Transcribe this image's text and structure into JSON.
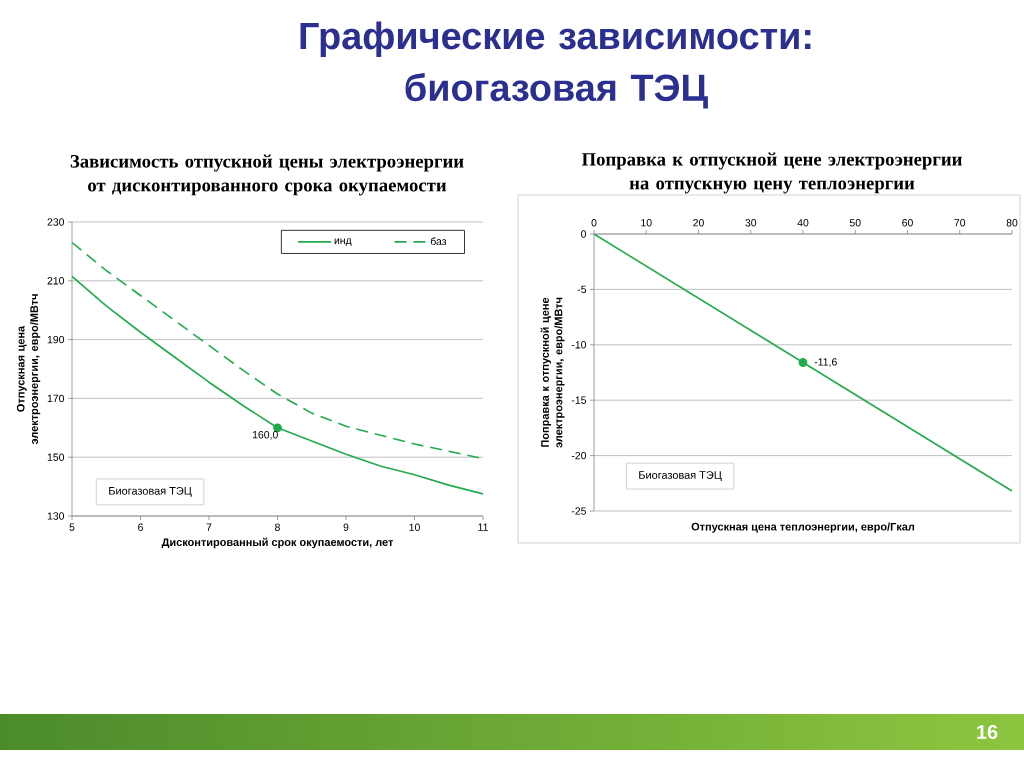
{
  "chart_data": [
    {
      "type": "other",
      "title": "Графические зависимости: биогазовая ТЭЦ",
      "annotations": [
        "16"
      ]
    },
    {
      "type": "line",
      "title": "Зависимость отпускной цены электроэнергии от дисконтированного срока окупаемости",
      "xlabel": "Дисконтированный срок окупаемости, лет",
      "ylabel": "Отпускная цена электроэнергии, евро/МВтч",
      "x": [
        5,
        5.5,
        6,
        6.5,
        7,
        7.5,
        8,
        8.5,
        9,
        9.5,
        10,
        10.5,
        11
      ],
      "series": [
        {
          "name": "инд",
          "color": "#22ab4c",
          "line_style": "solid",
          "values": [
            211.5,
            201.5,
            192.5,
            184,
            175.5,
            167.5,
            160,
            155.5,
            151,
            147,
            144,
            140.5,
            137.5
          ]
        },
        {
          "name": "баз",
          "color": "#22ab4c",
          "line_style": "dashed",
          "values": [
            223,
            213.5,
            205,
            196.5,
            188,
            179.5,
            171.5,
            165,
            160.5,
            157.5,
            154.5,
            152,
            149.5
          ]
        },
        {
          "type": "scatter",
          "color": "#22ab4c",
          "marker": "circle",
          "x": [
            8
          ],
          "values": [
            160.0
          ],
          "value_labels": [
            "160,0"
          ]
        }
      ],
      "xlim": [
        5,
        11
      ],
      "xticks": [
        5,
        6,
        7,
        8,
        9,
        10,
        11
      ],
      "ylim": [
        130,
        230
      ],
      "yticks": [
        130,
        150,
        170,
        190,
        210,
        230
      ],
      "grid": "y",
      "legend": "top right",
      "annotations": [
        "Биогазовая ТЭЦ"
      ]
    },
    {
      "type": "line",
      "title": "Поправка к отпускной цене электроэнергии на отпускную цену теплоэнергии",
      "xlabel": "Отпускная цена теплоэнергии, евро/Гкал",
      "ylabel": "Поправка к отпускной цене электроэнергии, евро/МВтч",
      "series": [
        {
          "color": "#22ab4c",
          "line_style": "solid",
          "x": [
            0,
            80
          ],
          "values": [
            0,
            -23.2
          ]
        },
        {
          "type": "scatter",
          "color": "#22ab4c",
          "marker": "circle",
          "x": [
            40
          ],
          "values": [
            -11.6
          ],
          "value_labels": [
            "-11,6"
          ]
        }
      ],
      "xlim": [
        0,
        80
      ],
      "xticks": [
        0,
        10,
        20,
        30,
        40,
        50,
        60,
        70,
        80
      ],
      "ylim": [
        -25,
        0
      ],
      "yticks": [
        -25,
        -20,
        -15,
        -10,
        -5,
        0
      ],
      "grid": "y",
      "annotations": [
        "Биогазовая ТЭЦ"
      ]
    }
  ]
}
